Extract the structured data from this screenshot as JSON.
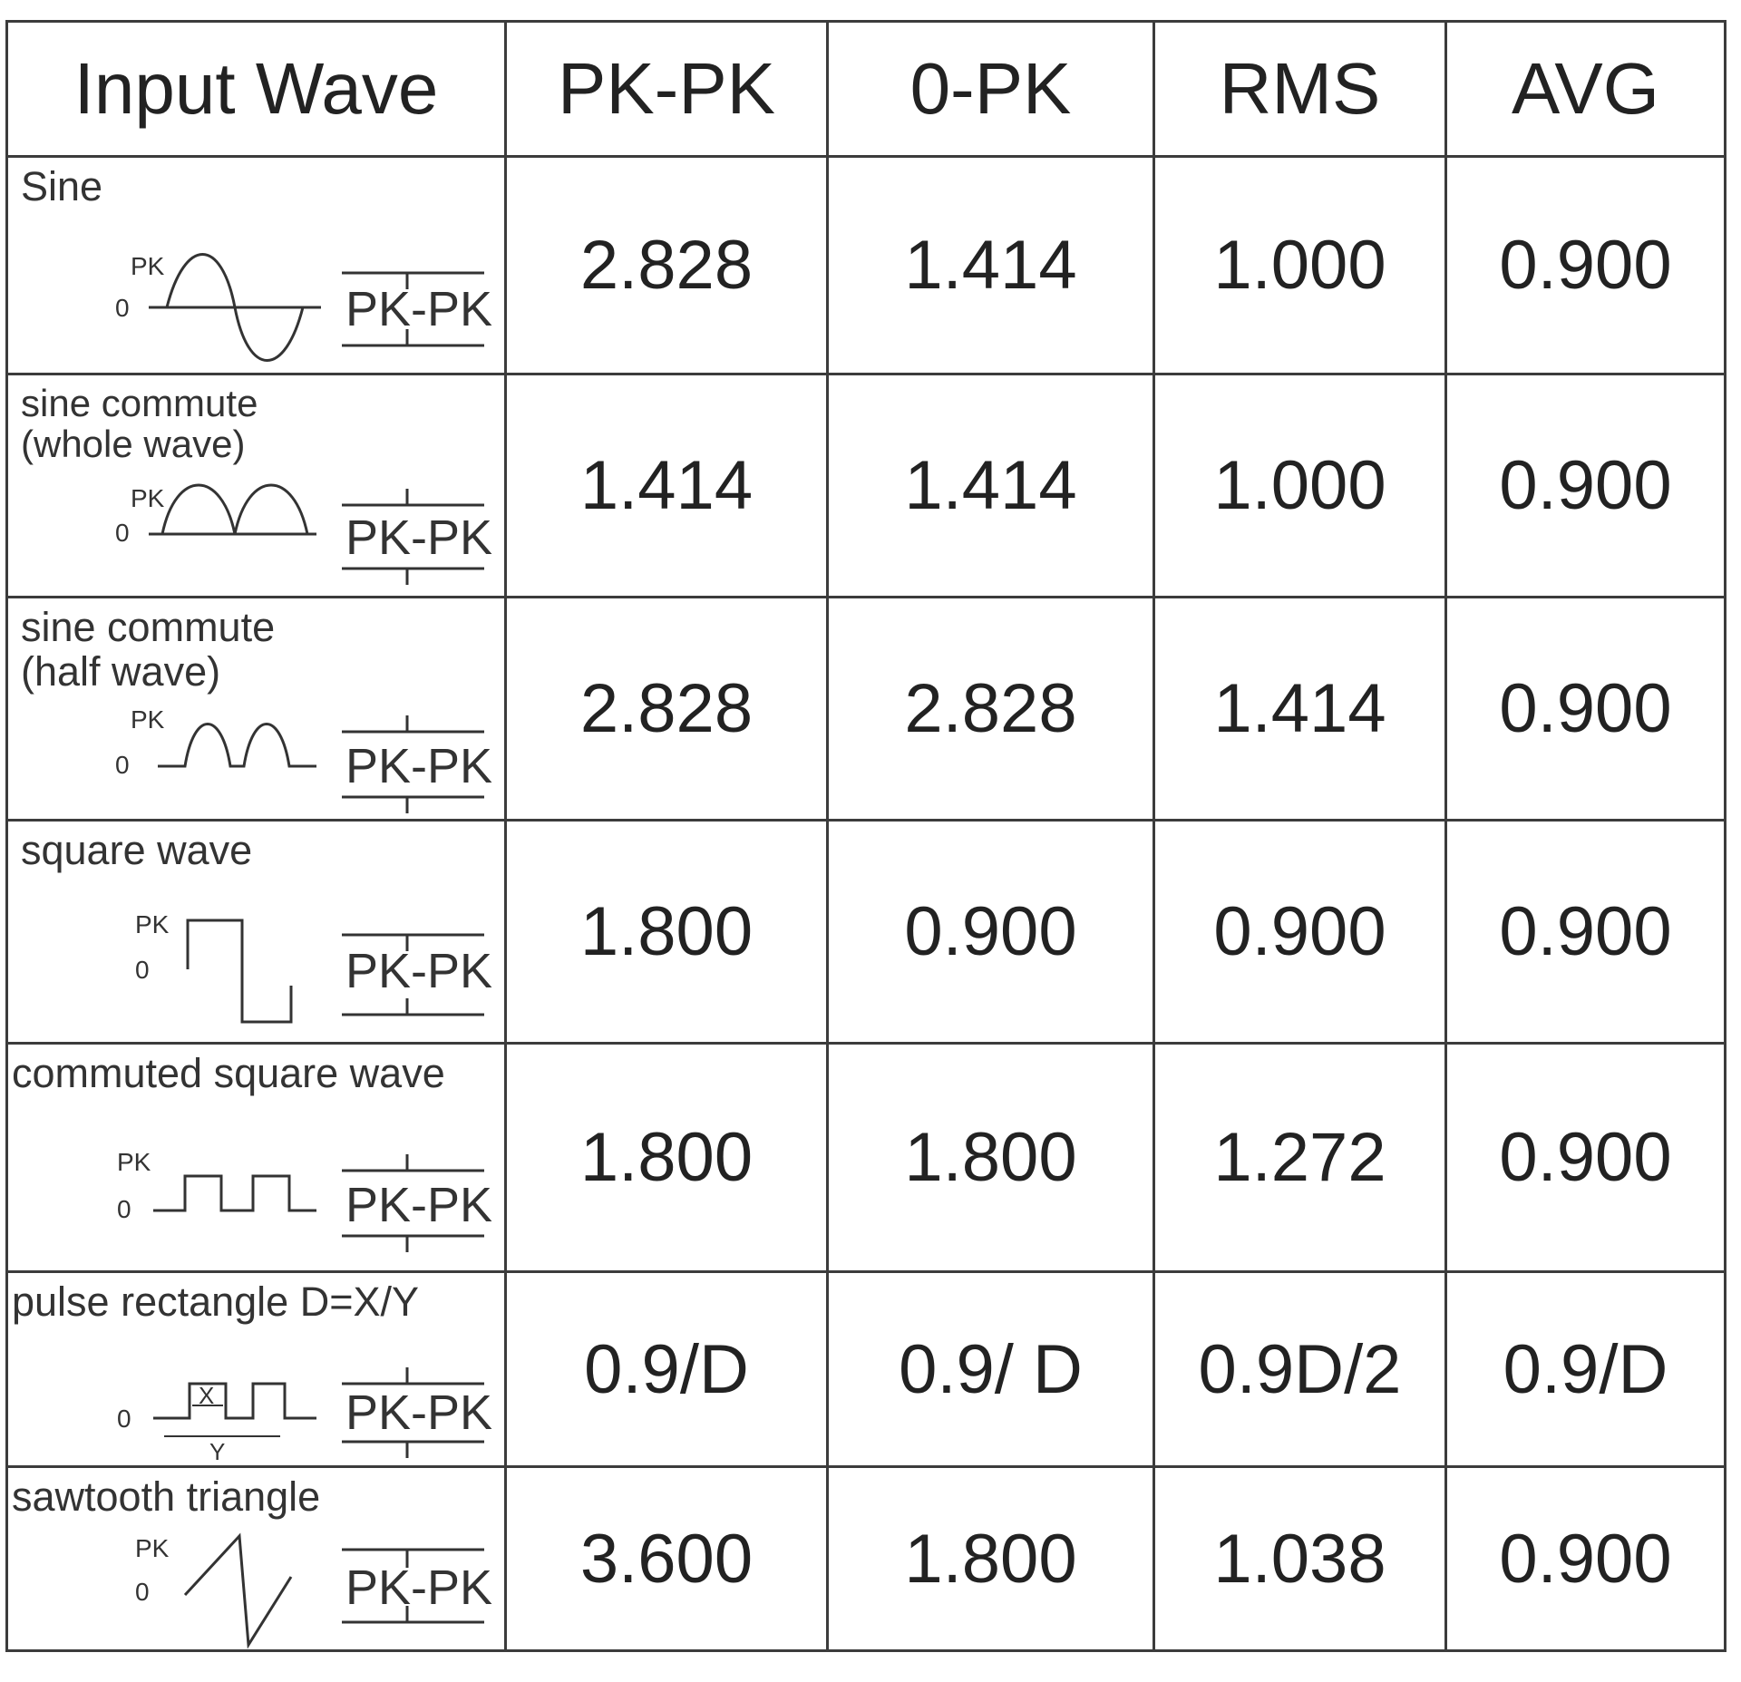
{
  "headers": [
    "Input Wave",
    "PK-PK",
    "0-PK",
    "RMS",
    "AVG"
  ],
  "rows": [
    {
      "wave": "Sine",
      "values": [
        "2.828",
        "1.414",
        "1.000",
        "0.900"
      ]
    },
    {
      "wave": "sine commute\n(whole wave)",
      "values": [
        "1.414",
        "1.414",
        "1.000",
        "0.900"
      ]
    },
    {
      "wave": "sine commute\n(half wave)",
      "values": [
        "2.828",
        "2.828",
        "1.414",
        "0.900"
      ]
    },
    {
      "wave": "square wave",
      "values": [
        "1.800",
        "0.900",
        "0.900",
        "0.900"
      ]
    },
    {
      "wave": "commuted square wave",
      "values": [
        "1.800",
        "1.800",
        "1.272",
        "0.900"
      ]
    },
    {
      "wave": "pulse rectangle D=X/Y",
      "values": [
        "0.9/D",
        "0.9/ D",
        "0.9D/2",
        "0.9/D"
      ]
    },
    {
      "wave": "sawtooth triangle",
      "values": [
        "3.600",
        "1.800",
        "1.038",
        "0.900"
      ]
    }
  ],
  "diagram_labels": {
    "pk": "PK",
    "zero": "0",
    "pkpk": "PK-PK",
    "x": "X",
    "y": "Y"
  },
  "icons": [
    "sine-wave-icon",
    "full-wave-rectified-icon",
    "half-wave-rectified-icon",
    "square-wave-icon",
    "commuted-square-wave-icon",
    "pulse-rectangle-icon",
    "sawtooth-triangle-icon"
  ]
}
